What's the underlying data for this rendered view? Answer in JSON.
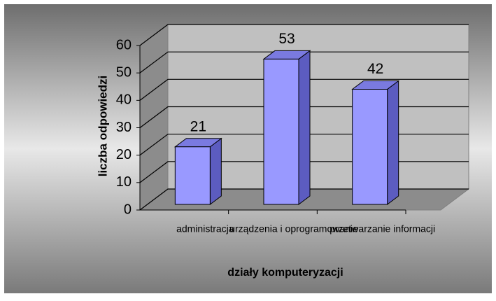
{
  "chart_data": {
    "type": "bar3d",
    "categories": [
      "administracja",
      "urządzenia i oprogramowanie",
      "przetwarzanie informacji"
    ],
    "values": [
      21,
      53,
      42
    ],
    "color": "#9999ff",
    "ylim": [
      0,
      60
    ],
    "yticks": [
      0,
      10,
      20,
      30,
      40,
      50,
      60
    ],
    "grid": true,
    "y_label": "liczba odpowiedzi",
    "x_label": "działy komputeryzacji"
  }
}
